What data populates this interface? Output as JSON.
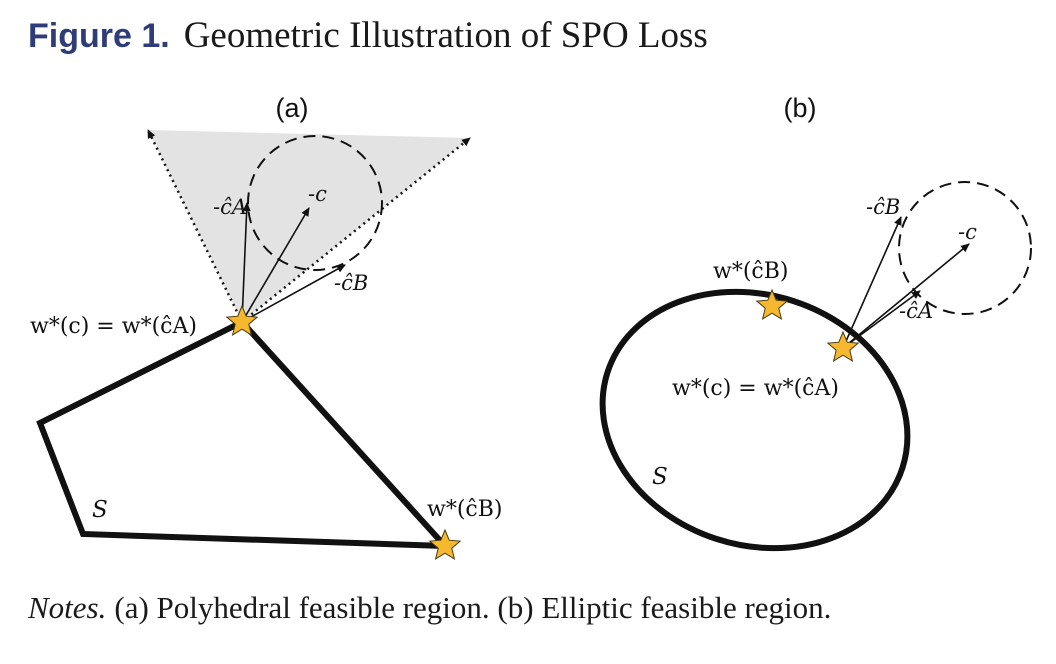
{
  "figure": {
    "number": "Figure 1.",
    "title": "Geometric Illustration of SPO Loss"
  },
  "panel_a": {
    "label": "(a)",
    "labels": {
      "neg_c_hat_a": "-ĉA",
      "neg_c": "-c",
      "neg_c_hat_b": "-ĉB",
      "optimum": "w*(c) = w*(ĉA)",
      "other": "w*(ĉB)",
      "region": "S"
    }
  },
  "panel_b": {
    "label": "(b)",
    "labels": {
      "neg_c_hat_b": "-ĉB",
      "neg_c": "-c",
      "neg_c_hat_a": "-ĉA",
      "optimum": "w*(c) = w*(ĉA)",
      "other": "w*(ĉB)",
      "region": "S"
    }
  },
  "notes": {
    "lead": "Notes.",
    "text": "(a) Polyhedral feasible region. (b) Elliptic feasible region."
  },
  "colors": {
    "star": "#f5b82e",
    "cone_fill": "#e3e3e3",
    "title_blue": "#2e3d78"
  }
}
